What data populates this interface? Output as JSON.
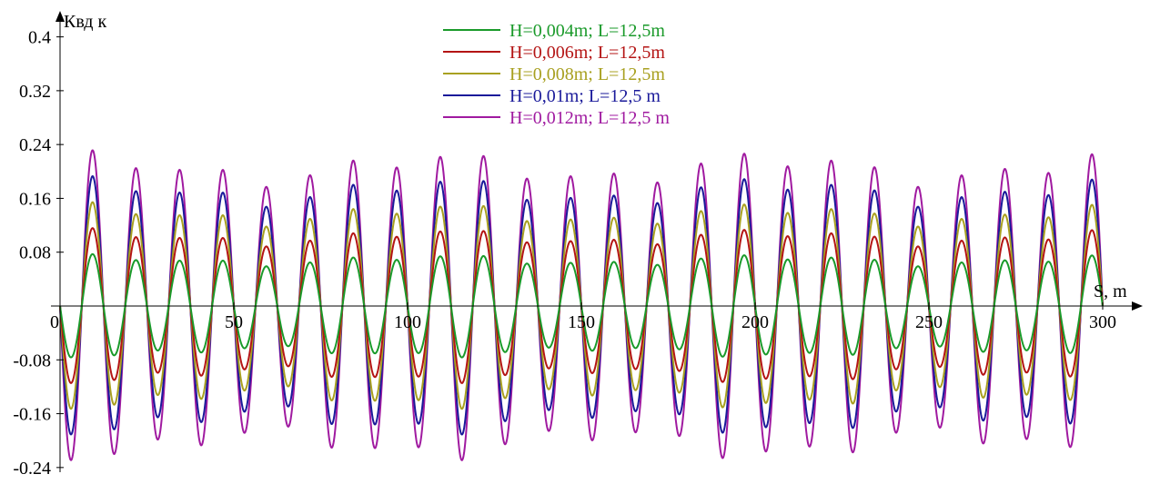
{
  "chart_data": {
    "type": "line",
    "title": "",
    "xlabel": "S, m",
    "ylabel": "Квд к",
    "xlim": [
      0,
      300
    ],
    "ylim": [
      -0.24,
      0.4
    ],
    "x_ticks": [
      "0",
      "50",
      "100",
      "150",
      "200",
      "250",
      "300"
    ],
    "y_ticks": [
      "0.4",
      "0.32",
      "0.24",
      "0.16",
      "0.08",
      "-0.08",
      "-0.16",
      "-0.24"
    ],
    "y_tick_values": [
      0.4,
      0.32,
      0.24,
      0.16,
      0.08,
      -0.08,
      -0.16,
      -0.24
    ],
    "x_tick_values": [
      0,
      50,
      100,
      150,
      200,
      250,
      300
    ],
    "grid": false,
    "legend_position": "top-center",
    "series": [
      {
        "name": "H=0,004m; L=12,5m",
        "color": "#1a9a2a",
        "amplitude": 0.068,
        "wavelength": 12.5,
        "low_freq_amp": 0.08
      },
      {
        "name": "H=0,006m; L=12,5m",
        "color": "#b41414",
        "amplitude": 0.102,
        "wavelength": 12.5,
        "low_freq_amp": 0.08
      },
      {
        "name": "H=0,008m; L=12,5m",
        "color": "#a8a020",
        "amplitude": 0.136,
        "wavelength": 12.5,
        "low_freq_amp": 0.08
      },
      {
        "name": "H=0,01m; L=12,5 m",
        "color": "#1a1a9a",
        "amplitude": 0.17,
        "wavelength": 12.5,
        "low_freq_amp": 0.08
      },
      {
        "name": "H=0,012m; L=12,5 m",
        "color": "#a01aa0",
        "amplitude": 0.204,
        "wavelength": 12.5,
        "low_freq_amp": 0.08
      }
    ]
  }
}
